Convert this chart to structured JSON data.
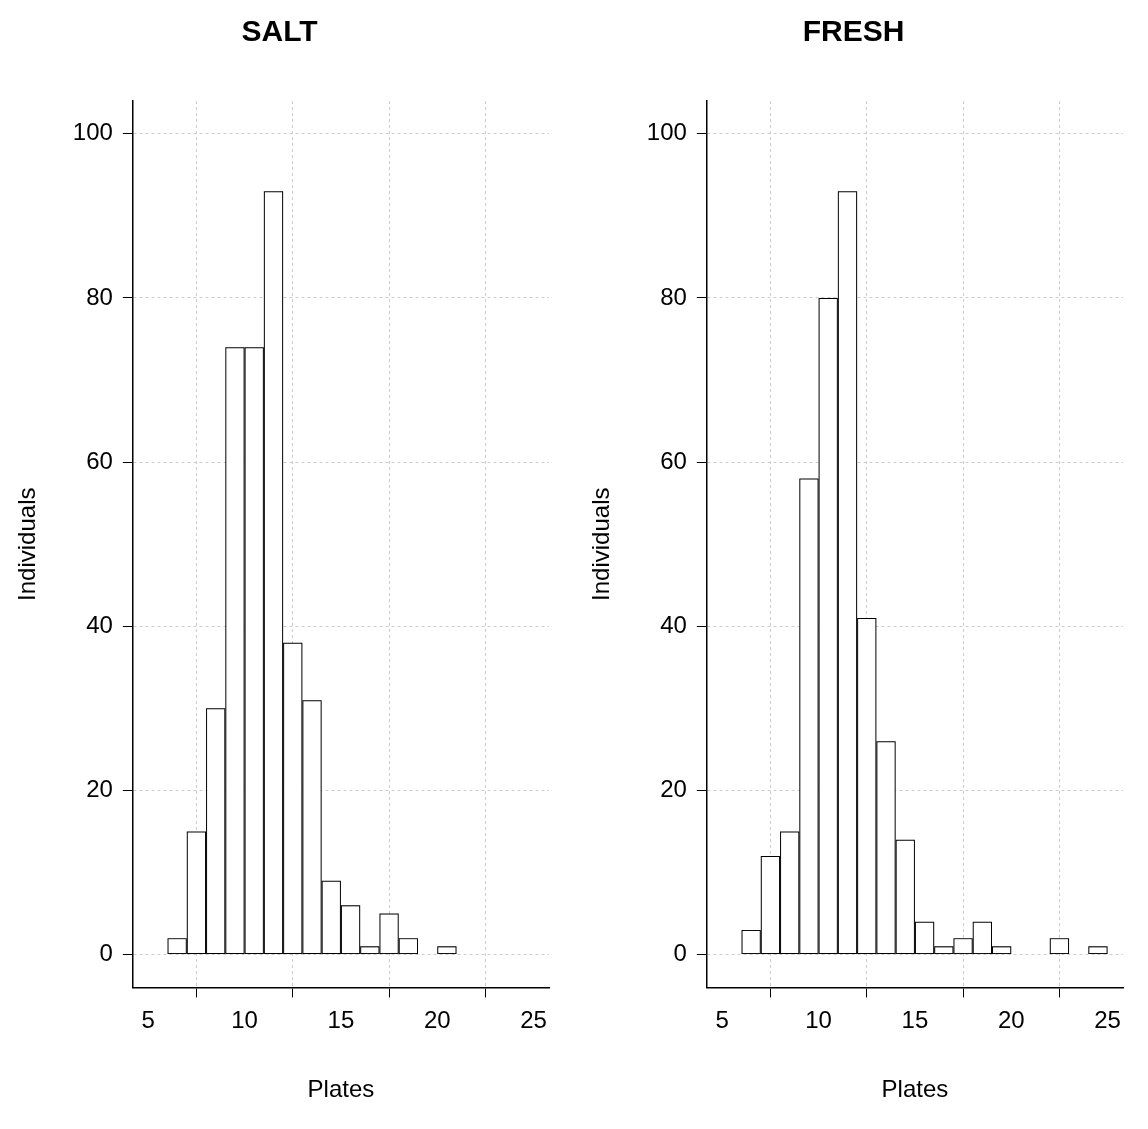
{
  "chart_data": [
    {
      "type": "histogram",
      "title": "SALT",
      "xlabel": "Plates",
      "ylabel": "Individuals",
      "color": "#000000",
      "bins": [
        5,
        6,
        7,
        8,
        9,
        10,
        11,
        12,
        13,
        14,
        15,
        16,
        17,
        18,
        19,
        20,
        21,
        22,
        23,
        24,
        25
      ],
      "values": [
        0,
        2,
        15,
        30,
        74,
        74,
        93,
        38,
        31,
        9,
        6,
        1,
        5,
        2,
        0,
        1,
        0,
        0,
        0,
        0
      ],
      "xlim": [
        4.2,
        25.8
      ],
      "xticks": [
        5,
        10,
        15,
        20,
        25
      ],
      "ylim": [
        -4,
        104
      ],
      "yticks": [
        0,
        20,
        40,
        60,
        80,
        100
      ],
      "grid": true,
      "legend": false
    },
    {
      "type": "histogram",
      "title": "FRESH",
      "xlabel": "Plates",
      "ylabel": "Individuals",
      "color": "#000000",
      "bins": [
        5,
        6,
        7,
        8,
        9,
        10,
        11,
        12,
        13,
        14,
        15,
        16,
        17,
        18,
        19,
        20,
        21,
        22,
        23,
        24,
        25
      ],
      "values": [
        0,
        3,
        12,
        15,
        58,
        80,
        93,
        41,
        26,
        14,
        4,
        1,
        2,
        4,
        1,
        0,
        0,
        2,
        0,
        1
      ],
      "xlim": [
        4.2,
        25.8
      ],
      "xticks": [
        5,
        10,
        15,
        20,
        25
      ],
      "ylim": [
        -4,
        104
      ],
      "yticks": [
        0,
        20,
        40,
        60,
        80,
        100
      ],
      "grid": true,
      "legend": false
    }
  ]
}
